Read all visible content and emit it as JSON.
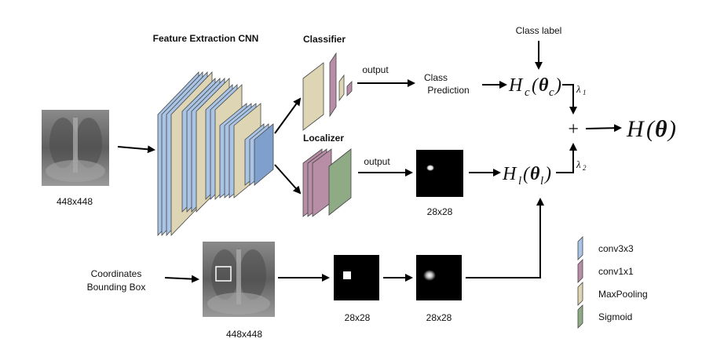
{
  "titles": {
    "feature_cnn": "Feature Extraction CNN",
    "classifier": "Classifier",
    "localizer": "Localizer"
  },
  "labels": {
    "input_size": "448x448",
    "output_top": "output",
    "output_bottom": "output",
    "class_prediction_1": "Class",
    "class_prediction_2": "Prediction",
    "class_label": "Class label",
    "coords_1": "Coordinates",
    "coords_2": "Bounding Box",
    "bottom_input_size": "448x448",
    "heat_28_top": "28x28",
    "heat_28_bottom_a": "28x28",
    "heat_28_bottom_b": "28x28"
  },
  "math": {
    "hc_H": "H",
    "hc_sub": "c",
    "hc_arg_open": "(",
    "hc_theta": "θ",
    "hc_arg_sub": "c",
    "hc_arg_close": ")",
    "hl_H": "H",
    "hl_sub": "l",
    "hl_arg_open": "(",
    "hl_theta": "θ",
    "hl_arg_sub": "l",
    "hl_arg_close": ")",
    "lambda1": "λ",
    "lambda1_sub": "1",
    "lambda2": "λ",
    "lambda2_sub": "2",
    "plus": "+",
    "final_H": "H",
    "final_open": "(",
    "final_theta": "θ",
    "final_close": ")"
  },
  "legend": {
    "items": [
      {
        "label": "conv3x3",
        "color": "#a9c4e4"
      },
      {
        "label": "conv1x1",
        "color": "#b88ea6"
      },
      {
        "label": "MaxPooling",
        "color": "#ddd5b4"
      },
      {
        "label": "Sigmoid",
        "color": "#8fab85"
      }
    ]
  },
  "colors": {
    "conv3x3": "#a9c4e4",
    "conv1x1": "#b88ea6",
    "maxpool": "#ddd5b4",
    "sigmoid": "#8fab85",
    "blue_layer": "#7f9fcc"
  }
}
